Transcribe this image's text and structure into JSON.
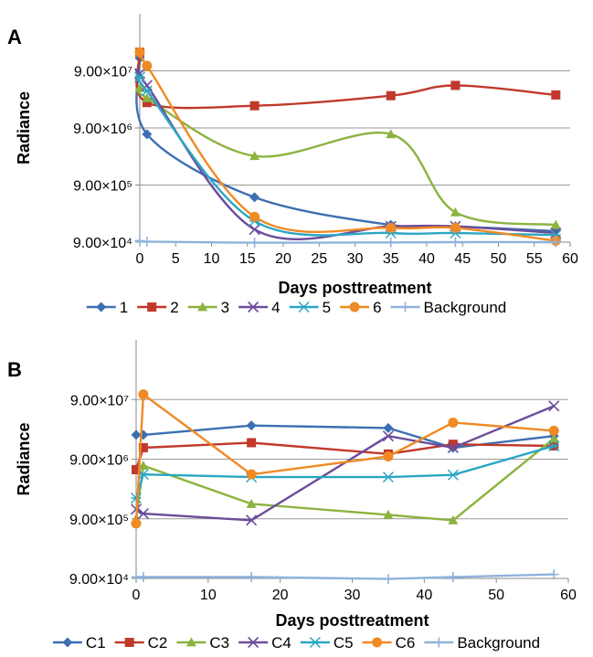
{
  "chart_data": [
    {
      "panel": "A",
      "type": "line",
      "xlabel": "Days posttreatment",
      "ylabel": "Radiance",
      "xlim": [
        0,
        60
      ],
      "x_ticks": [
        0,
        5,
        10,
        15,
        20,
        25,
        30,
        35,
        40,
        45,
        50,
        55,
        60
      ],
      "y_scale": "log",
      "ylim": [
        90000,
        900000000
      ],
      "y_ticks": [
        {
          "value": 90000,
          "label": "9.00×10⁴"
        },
        {
          "value": 900000,
          "label": "9.00×10⁵"
        },
        {
          "value": 9000000,
          "label": "9.00×10⁶"
        },
        {
          "value": 90000000,
          "label": "9.00×10⁷"
        }
      ],
      "grid": "horizontal",
      "legend": "bottom",
      "series": [
        {
          "name": "1",
          "color": "#3d6fb3",
          "marker": "diamond",
          "x": [
            0,
            1,
            16,
            35,
            44,
            58
          ],
          "y": [
            150000000,
            7000000,
            550000,
            180000,
            170000,
            140000
          ]
        },
        {
          "name": "2",
          "color": "#c0392b",
          "marker": "square",
          "x": [
            0,
            1,
            16,
            35,
            44,
            58
          ],
          "y": [
            190000000,
            25000000,
            22000000,
            33000000,
            50000000,
            34000000
          ]
        },
        {
          "name": "3",
          "color": "#8cb33f",
          "marker": "triangle",
          "x": [
            0,
            1,
            16,
            35,
            44,
            58
          ],
          "y": [
            45000000,
            30000000,
            2900000,
            7000000,
            300000,
            180000
          ]
        },
        {
          "name": "4",
          "color": "#6b4c9a",
          "marker": "x",
          "x": [
            0,
            1,
            16,
            35,
            44,
            58
          ],
          "y": [
            80000000,
            50000000,
            150000,
            170000,
            170000,
            130000
          ]
        },
        {
          "name": "5",
          "color": "#2aa6c4",
          "marker": "star",
          "x": [
            0,
            1,
            16,
            35,
            44,
            58
          ],
          "y": [
            70000000,
            40000000,
            210000,
            130000,
            130000,
            120000
          ]
        },
        {
          "name": "6",
          "color": "#f08a24",
          "marker": "circle",
          "x": [
            0,
            1,
            16,
            35,
            44,
            58
          ],
          "y": [
            190000000,
            110000000,
            250000,
            160000,
            160000,
            95000
          ]
        },
        {
          "name": "Background",
          "color": "#8fb2dc",
          "marker": "plus",
          "x": [
            0,
            1,
            16,
            35,
            44,
            58
          ],
          "y": [
            95000,
            92000,
            88000,
            89000,
            90000,
            90000
          ]
        }
      ]
    },
    {
      "panel": "B",
      "type": "line",
      "xlabel": "Days posttreatment",
      "ylabel": "Radiance",
      "xlim": [
        0,
        60
      ],
      "x_ticks": [
        0,
        10,
        20,
        30,
        40,
        50,
        60
      ],
      "y_scale": "log",
      "ylim": [
        90000,
        900000000
      ],
      "y_ticks": [
        {
          "value": 90000,
          "label": "9.00×10⁴"
        },
        {
          "value": 900000,
          "label": "9.00×10⁵"
        },
        {
          "value": 9000000,
          "label": "9.00×10⁶"
        },
        {
          "value": 90000000,
          "label": "9.00×10⁷"
        }
      ],
      "grid": "horizontal",
      "legend": "bottom",
      "series": [
        {
          "name": "C1",
          "color": "#3d6fb3",
          "marker": "diamond",
          "x": [
            0,
            1,
            16,
            35,
            44,
            58
          ],
          "y": [
            23000000,
            23000000,
            33000000,
            30000000,
            14000000,
            22000000
          ]
        },
        {
          "name": "C2",
          "color": "#c0392b",
          "marker": "square",
          "x": [
            0,
            1,
            16,
            35,
            44,
            58
          ],
          "y": [
            6000000,
            14000000,
            17000000,
            11000000,
            16000000,
            15000000
          ]
        },
        {
          "name": "C3",
          "color": "#8cb33f",
          "marker": "triangle",
          "x": [
            0,
            1,
            16,
            35,
            44,
            58
          ],
          "y": [
            900000,
            7000000,
            1600000,
            1050000,
            850000,
            20000000
          ]
        },
        {
          "name": "C4",
          "color": "#6b4c9a",
          "marker": "x",
          "x": [
            0,
            1,
            16,
            35,
            44,
            58
          ],
          "y": [
            1300000,
            1100000,
            850000,
            22000000,
            14000000,
            70000000
          ]
        },
        {
          "name": "C5",
          "color": "#2aa6c4",
          "marker": "star",
          "x": [
            0,
            1,
            16,
            35,
            44,
            58
          ],
          "y": [
            2000000,
            5000000,
            4500000,
            4500000,
            4900000,
            15000000
          ]
        },
        {
          "name": "C6",
          "color": "#f08a24",
          "marker": "circle",
          "x": [
            0,
            1,
            16,
            35,
            44,
            58
          ],
          "y": [
            750000,
            110000000,
            5000000,
            10000000,
            37000000,
            27000000
          ]
        },
        {
          "name": "Background",
          "color": "#8fb2dc",
          "marker": "plus",
          "x": [
            0,
            1,
            16,
            35,
            44,
            58
          ],
          "y": [
            95000,
            95000,
            95000,
            88000,
            95000,
            105000
          ]
        }
      ]
    }
  ]
}
